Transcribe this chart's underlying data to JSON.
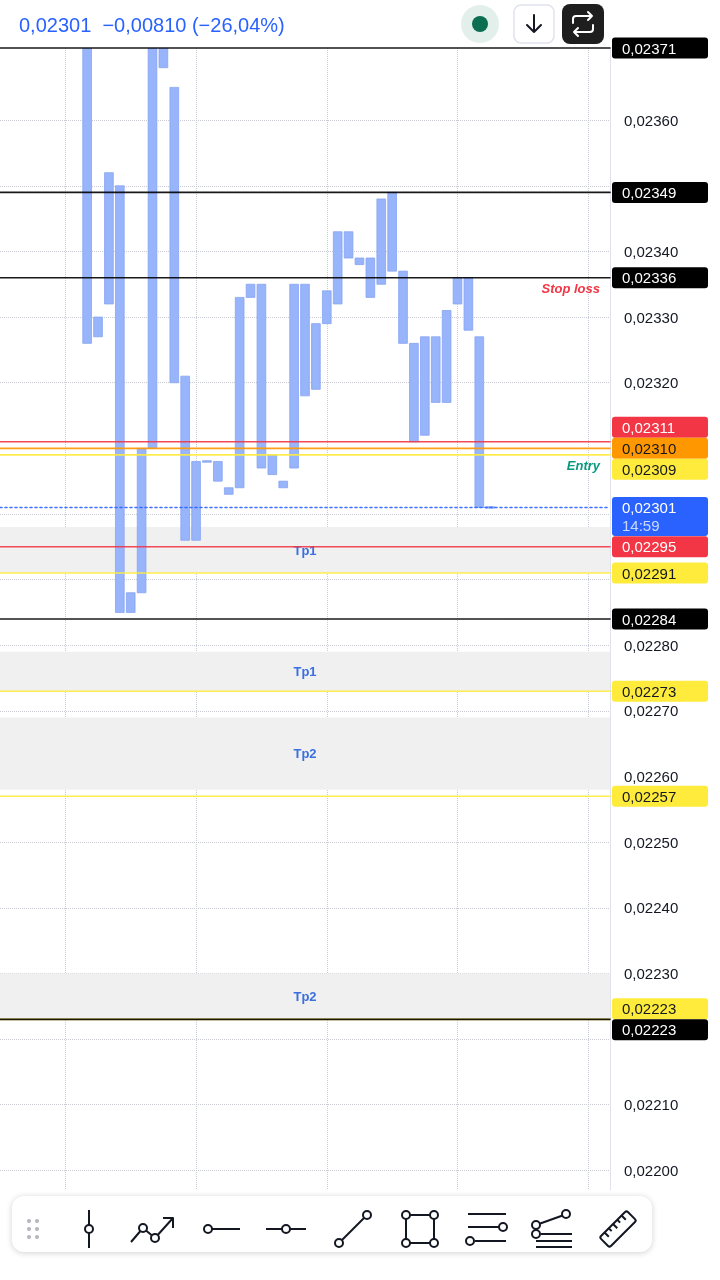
{
  "chart_data": {
    "type": "bar",
    "subtitle": "0,02301  −0,00810 (−26,04%)",
    "categories": [
      null,
      null,
      null,
      null,
      null,
      null,
      null,
      null,
      null,
      null,
      null,
      null,
      null,
      null,
      null,
      null,
      null,
      null,
      null,
      null,
      null,
      null,
      null,
      null,
      null,
      null,
      null,
      null,
      null,
      null,
      null,
      null,
      null,
      null,
      null,
      null,
      null,
      null,
      null,
      null,
      null,
      null,
      null,
      null,
      null,
      null,
      null,
      null,
      null,
      null,
      null,
      null,
      null,
      null,
      null,
      null,
      null
    ],
    "base": [
      null,
      null,
      null,
      null,
      null,
      null,
      null,
      null,
      0.02326,
      0.02327,
      0.02332,
      0.02285,
      0.02285,
      0.02288,
      0.0231,
      0.02368,
      0.0232,
      0.02296,
      0.02296,
      0.02308,
      0.02305,
      0.02303,
      0.02304,
      0.02333,
      0.02307,
      0.02306,
      0.02304,
      0.02307,
      0.02318,
      0.02319,
      0.02329,
      0.02332,
      0.02339,
      0.02338,
      0.02333,
      0.02335,
      0.02337,
      0.02326,
      0.02311,
      0.02312,
      0.02317,
      0.02317,
      0.02332,
      0.02328,
      0.02301,
      0.02301,
      null,
      null,
      null,
      null,
      null,
      null,
      null,
      null,
      null,
      null,
      null
    ],
    "values": [
      null,
      null,
      null,
      null,
      null,
      null,
      null,
      null,
      0.00045,
      3e-05,
      0.0002,
      0.00065,
      3e-05,
      0.00022,
      0.00061,
      3e-05,
      0.00045,
      0.00025,
      0.00012,
      0,
      3e-05,
      1e-05,
      0.00029,
      2e-05,
      0.00028,
      3e-05,
      1e-05,
      0.00028,
      0.00017,
      0.0001,
      5e-05,
      0.00011,
      4e-05,
      1e-05,
      6e-05,
      0.00013,
      0.00012,
      0.00011,
      0.00015,
      0.00015,
      0.0001,
      0.00014,
      4e-05,
      8e-05,
      0.00026,
      0,
      null,
      null,
      null,
      null,
      null,
      null,
      null,
      null,
      null,
      null,
      null
    ],
    "color": "#98b4fa",
    "ylim": [
      0.02197,
      0.02371
    ],
    "yticks": [
      {
        "value": 0.022,
        "label": "0,02200"
      },
      {
        "value": 0.0221,
        "label": "0,02210"
      },
      {
        "value": 0.0222,
        "label": null
      },
      {
        "value": 0.0223,
        "label": "0,02230"
      },
      {
        "value": 0.0224,
        "label": "0,02240"
      },
      {
        "value": 0.0225,
        "label": "0,02250"
      },
      {
        "value": 0.0226,
        "label": "0,02260"
      },
      {
        "value": 0.0227,
        "label": "0,02270"
      },
      {
        "value": 0.0228,
        "label": "0,02280"
      },
      {
        "value": 0.0229,
        "label": null
      },
      {
        "value": 0.023,
        "label": null
      },
      {
        "value": 0.0231,
        "label": null
      },
      {
        "value": 0.0232,
        "label": "0,02320"
      },
      {
        "value": 0.0233,
        "label": "0,02330"
      },
      {
        "value": 0.0234,
        "label": "0,02340"
      },
      {
        "value": 0.0235,
        "label": null
      },
      {
        "value": 0.0236,
        "label": "0,02360"
      }
    ],
    "grid": true,
    "tick_labels": "y",
    "ref_lines": [
      {
        "axis": "y",
        "value": 0.02371,
        "label": "0,02371",
        "color": "#000000"
      },
      {
        "axis": "y",
        "value": 0.02349,
        "label": "0,02349",
        "color": "#000000"
      },
      {
        "axis": "y",
        "value": 0.02336,
        "label": "0,02336",
        "color": "#000000"
      },
      {
        "axis": "y",
        "value": 0.02311,
        "label": "0,02311",
        "color": "#f23645"
      },
      {
        "axis": "y",
        "value": 0.0231,
        "label": "0,02310",
        "color": "#ff9800"
      },
      {
        "axis": "y",
        "value": 0.02309,
        "label": "0,02309",
        "color": "#ffeb3b"
      },
      {
        "axis": "y",
        "value": 0.02301,
        "label": "0,02301\n14:59",
        "color": "#2962ff",
        "line_style": "dotted"
      },
      {
        "axis": "y",
        "value": 0.02295,
        "label": "0,02295",
        "color": "#f23645"
      },
      {
        "axis": "y",
        "value": 0.02291,
        "label": "0,02291",
        "color": "#ffeb3b"
      },
      {
        "axis": "y",
        "value": 0.02284,
        "label": "0,02284",
        "color": "#000000"
      },
      {
        "axis": "y",
        "value": 0.02273,
        "label": "0,02273",
        "color": "#ffeb3b"
      },
      {
        "axis": "y",
        "value": 0.02257,
        "label": "0,02257",
        "color": "#ffeb3b"
      },
      {
        "axis": "y",
        "value": 0.02223,
        "label": "0,02223",
        "color": "#ffeb3b"
      },
      {
        "axis": "y",
        "value": 0.02223,
        "label": "0,02223",
        "color": "#000000"
      }
    ],
    "bands": [
      {
        "axis": "y",
        "from": 0.02291,
        "to": 0.02298,
        "label": "Tp1",
        "color": "#f0f0f0"
      },
      {
        "axis": "y",
        "from": 0.02273,
        "to": 0.02279,
        "label": "Tp1",
        "color": "#f0f0f0"
      },
      {
        "axis": "y",
        "from": 0.02258,
        "to": 0.02269,
        "label": "Tp2",
        "color": "#f0f0f0"
      },
      {
        "axis": "y",
        "from": 0.02223,
        "to": 0.0223,
        "label": "Tp2",
        "color": "#f0f0f0"
      }
    ],
    "annotations": [
      {
        "text": "Stop loss",
        "y": 0.02336
      },
      {
        "text": "Entry",
        "y": 0.02309
      }
    ]
  }
}
